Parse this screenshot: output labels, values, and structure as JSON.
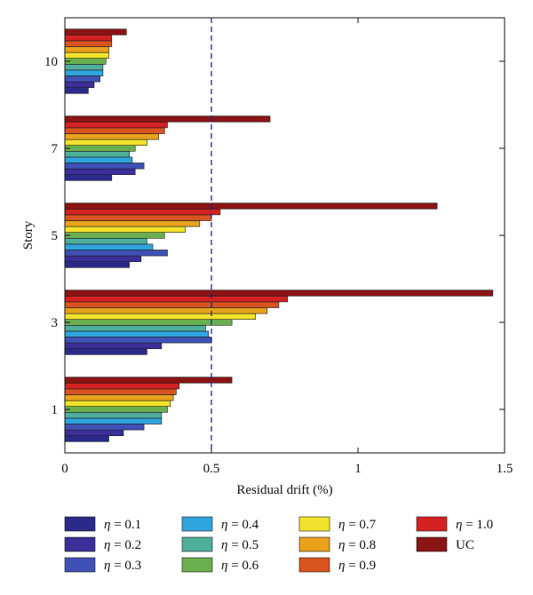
{
  "chart_data": {
    "type": "bar",
    "orientation": "horizontal",
    "xlabel": "Residual drift (%)",
    "ylabel": "Story",
    "xlim": [
      0,
      1.5
    ],
    "x_ticks": [
      0,
      0.5,
      1,
      1.5
    ],
    "x_tick_labels": [
      "0",
      "0.5",
      "1",
      "1.5"
    ],
    "categories": [
      "10",
      "7",
      "5",
      "3",
      "1"
    ],
    "reference_line": {
      "x": 0.5,
      "style": "dashed",
      "color": "#1f1fa8"
    },
    "grid": false,
    "legend_position": "bottom",
    "series": [
      {
        "name": "η = 0.1",
        "color": "#2a2a8a",
        "values": [
          0.08,
          0.16,
          0.22,
          0.28,
          0.15
        ]
      },
      {
        "name": "η = 0.2",
        "color": "#3b2f9a",
        "values": [
          0.1,
          0.24,
          0.26,
          0.33,
          0.2
        ]
      },
      {
        "name": "η = 0.3",
        "color": "#3f51b5",
        "values": [
          0.12,
          0.27,
          0.35,
          0.5,
          0.27
        ]
      },
      {
        "name": "η = 0.4",
        "color": "#2fa4dd",
        "values": [
          0.13,
          0.23,
          0.3,
          0.49,
          0.33
        ]
      },
      {
        "name": "η = 0.5",
        "color": "#4fae9b",
        "values": [
          0.13,
          0.22,
          0.28,
          0.48,
          0.33
        ]
      },
      {
        "name": "η = 0.6",
        "color": "#6aaf4f",
        "values": [
          0.14,
          0.24,
          0.34,
          0.57,
          0.35
        ]
      },
      {
        "name": "η = 0.7",
        "color": "#f2e22c",
        "values": [
          0.15,
          0.28,
          0.41,
          0.65,
          0.36
        ]
      },
      {
        "name": "η = 0.8",
        "color": "#e8a21c",
        "values": [
          0.15,
          0.32,
          0.46,
          0.69,
          0.37
        ]
      },
      {
        "name": "η = 0.9",
        "color": "#d9541e",
        "values": [
          0.16,
          0.34,
          0.5,
          0.73,
          0.38
        ]
      },
      {
        "name": "η = 1.0",
        "color": "#d42222",
        "values": [
          0.16,
          0.35,
          0.53,
          0.76,
          0.39
        ]
      },
      {
        "name": "UC",
        "color": "#8b1414",
        "values": [
          0.21,
          0.7,
          1.27,
          1.46,
          0.57
        ]
      }
    ]
  }
}
